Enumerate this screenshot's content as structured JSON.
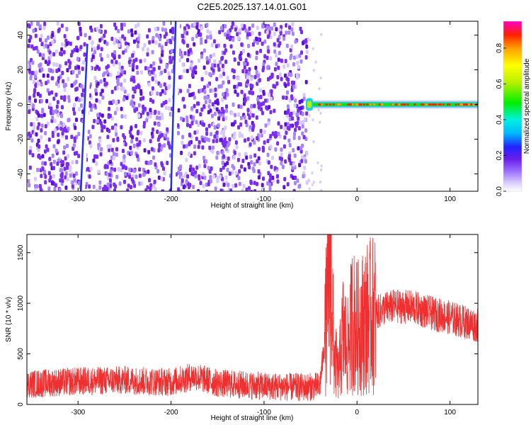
{
  "title": "C2E5.2025.137.14.01.G01",
  "chart_data": [
    {
      "type": "heatmap",
      "xlabel": "Height of straight line (km)",
      "ylabel": "Frequency (Hz)",
      "xlim": [
        -355,
        130
      ],
      "ylim": [
        -50,
        48
      ],
      "xticks": [
        -300,
        -200,
        -100,
        0,
        100
      ],
      "yticks": [
        -40,
        -20,
        0,
        20,
        40
      ],
      "colorbar": {
        "label": "Normalized spectral amplitude",
        "range": [
          0,
          0.95
        ],
        "ticks": [
          0,
          0.2,
          0.4,
          0.6,
          0.8
        ],
        "colors": [
          "#ffffff",
          "#b59cff",
          "#6a1ee8",
          "#2222ff",
          "#00b8ff",
          "#00f0e0",
          "#00f000",
          "#b8f000",
          "#ffff00",
          "#ffa000",
          "#ff2000",
          "#ff00c8"
        ]
      },
      "regions": [
        {
          "description_x_range": [
            -355,
            -55
          ],
          "pattern": "broadband noise",
          "amplitude": 0.15
        },
        {
          "description_x_range": [
            -55,
            130
          ],
          "pattern": "narrow line at 0 Hz",
          "amplitude": 0.85
        }
      ],
      "streaks": [
        {
          "x_top": -290,
          "x_bottom": -297,
          "y_top": 35,
          "y_bottom": -50
        },
        {
          "x_top": -195,
          "x_bottom": -200,
          "y_top": 48,
          "y_bottom": -50
        }
      ]
    },
    {
      "type": "line",
      "xlabel": "Height of straight line (km)",
      "ylabel": "SNR (10 * v/v)",
      "xlim": [
        -355,
        130
      ],
      "ylim": [
        0,
        1680
      ],
      "xticks": [
        -300,
        -200,
        -100,
        0,
        100
      ],
      "yticks": [
        0,
        500,
        1000,
        1500
      ],
      "series": [
        {
          "color": "#f03030",
          "profile": [
            [
              -355,
              200
            ],
            [
              -300,
              230
            ],
            [
              -250,
              240
            ],
            [
              -200,
              220
            ],
            [
              -175,
              280
            ],
            [
              -150,
              210
            ],
            [
              -100,
              180
            ],
            [
              -60,
              170
            ],
            [
              -40,
              180
            ],
            [
              -35,
              600
            ],
            [
              -28,
              1500
            ],
            [
              -25,
              500
            ],
            [
              -20,
              300
            ],
            [
              -15,
              700
            ],
            [
              -10,
              550
            ],
            [
              -5,
              850
            ],
            [
              0,
              750
            ],
            [
              10,
              850
            ],
            [
              20,
              900
            ],
            [
              30,
              950
            ],
            [
              40,
              970
            ],
            [
              60,
              960
            ],
            [
              80,
              900
            ],
            [
              100,
              860
            ],
            [
              110,
              830
            ],
            [
              130,
              780
            ]
          ]
        }
      ]
    }
  ]
}
